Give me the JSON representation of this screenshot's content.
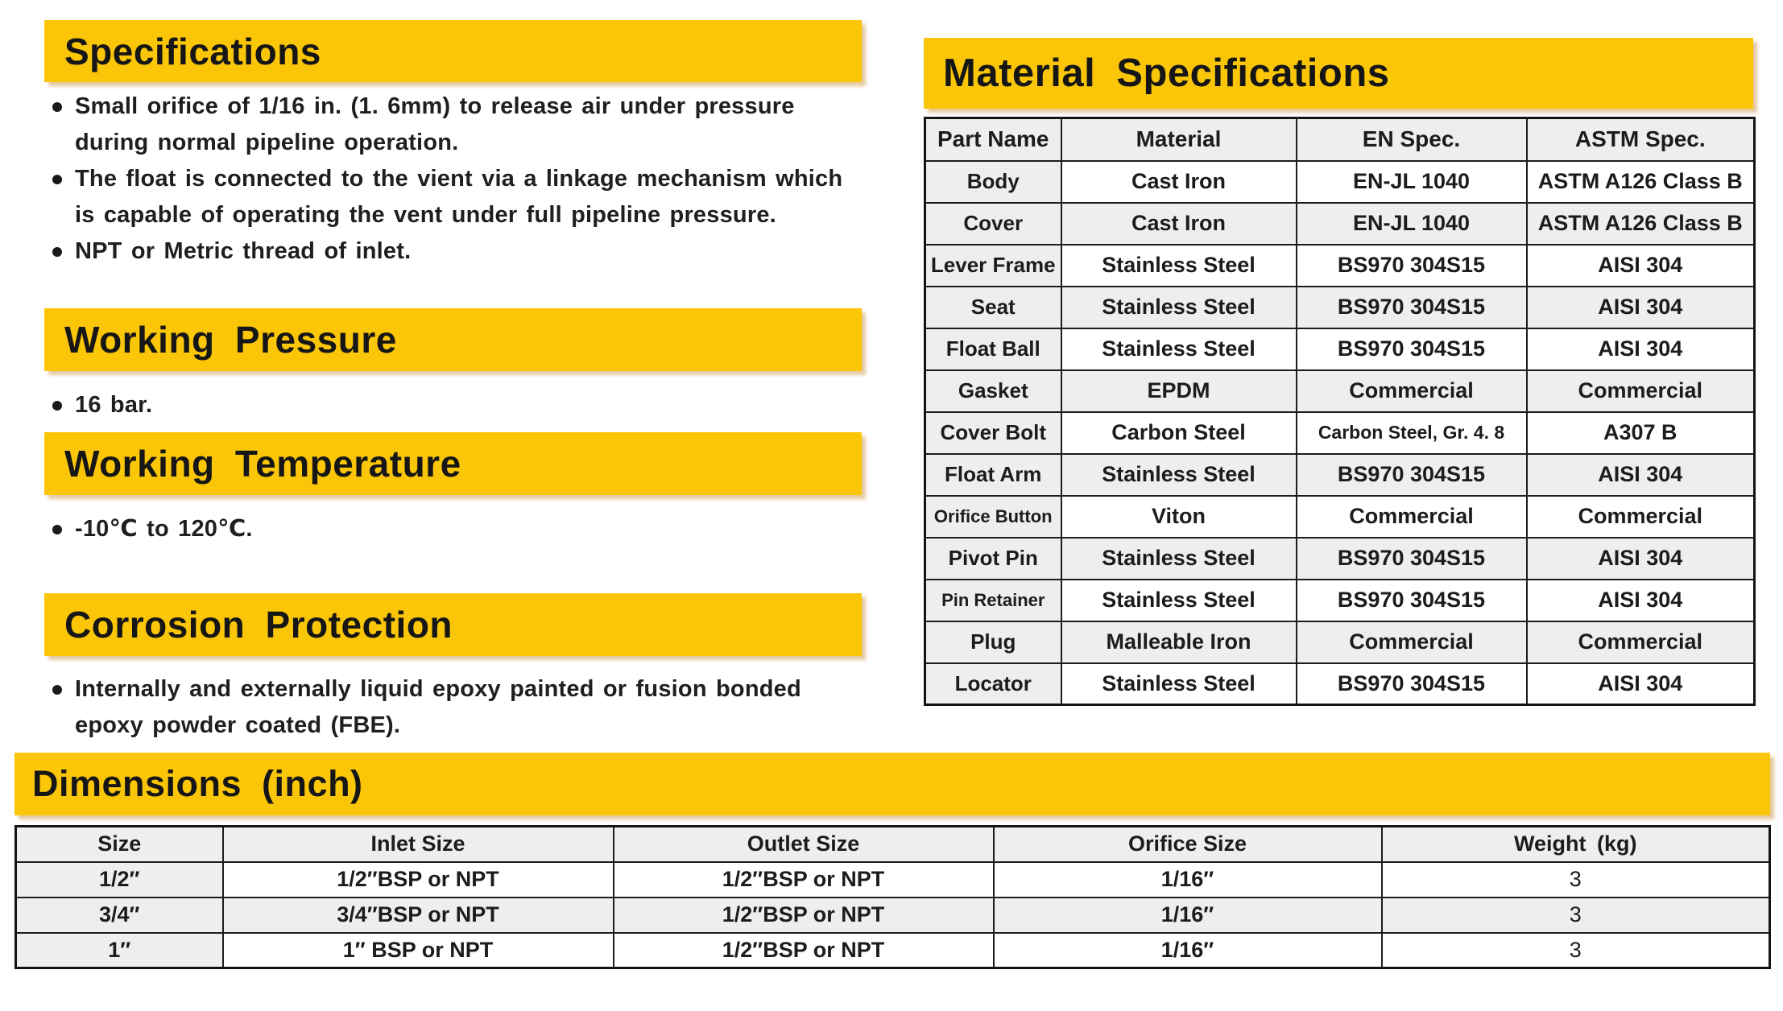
{
  "colors": {
    "banner_yellow": "#FBC608",
    "row_shade": "#EFEDED",
    "text": "#1C1C1C"
  },
  "sections": {
    "specifications": {
      "title": "Specifications",
      "bullets": [
        "Small orifice of 1/16 in. (1. 6mm) to release air under pressure during normal pipeline operation.",
        "The float is connected to the vient via a linkage mechanism which is capable of operating the vent under full pipeline pressure.",
        "NPT or Metric thread of inlet."
      ]
    },
    "working_pressure": {
      "title": "Working Pressure",
      "bullets": [
        "16 bar."
      ]
    },
    "working_temperature": {
      "title": "Working Temperature",
      "bullets": [
        "-10℃ to 120℃."
      ]
    },
    "corrosion_protection": {
      "title": "Corrosion Protection",
      "bullets": [
        "Internally and externally liquid epoxy painted or fusion bonded epoxy powder coated (FBE)."
      ]
    }
  },
  "material_table": {
    "title": "Material Specifications",
    "columns": [
      "Part Name",
      "Material",
      "EN Spec.",
      "ASTM Spec."
    ],
    "rows": [
      [
        "Body",
        "Cast Iron",
        "EN-JL 1040",
        "ASTM A126 Class B"
      ],
      [
        "Cover",
        "Cast Iron",
        "EN-JL 1040",
        "ASTM A126 Class B"
      ],
      [
        "Lever Frame",
        "Stainless Steel",
        "BS970 304S15",
        "AISI 304"
      ],
      [
        "Seat",
        "Stainless Steel",
        "BS970 304S15",
        "AISI 304"
      ],
      [
        "Float Ball",
        "Stainless Steel",
        "BS970 304S15",
        "AISI 304"
      ],
      [
        "Gasket",
        "EPDM",
        "Commercial",
        "Commercial"
      ],
      [
        "Cover Bolt",
        "Carbon Steel",
        "Carbon Steel, Gr. 4. 8",
        "A307 B"
      ],
      [
        "Float Arm",
        "Stainless Steel",
        "BS970 304S15",
        "AISI 304"
      ],
      [
        "Orifice Button",
        "Viton",
        "Commercial",
        "Commercial"
      ],
      [
        "Pivot Pin",
        "Stainless Steel",
        "BS970 304S15",
        "AISI 304"
      ],
      [
        "Pin Retainer",
        "Stainless Steel",
        "BS970 304S15",
        "AISI 304"
      ],
      [
        "Plug",
        "Malleable Iron",
        "Commercial",
        "Commercial"
      ],
      [
        "Locator",
        "Stainless Steel",
        "BS970 304S15",
        "AISI 304"
      ]
    ]
  },
  "dimensions_table": {
    "title": "Dimensions (inch)",
    "columns": [
      "Size",
      "Inlet Size",
      "Outlet Size",
      "Orifice Size",
      "Weight (kg)"
    ],
    "rows": [
      [
        "1/2″",
        "1/2″BSP or NPT",
        "1/2″BSP or NPT",
        "1/16″",
        "3"
      ],
      [
        "3/4″",
        "3/4″BSP or NPT",
        "1/2″BSP or NPT",
        "1/16″",
        "3"
      ],
      [
        "1″",
        "1″ BSP or NPT",
        "1/2″BSP or NPT",
        "1/16″",
        "3"
      ]
    ]
  }
}
